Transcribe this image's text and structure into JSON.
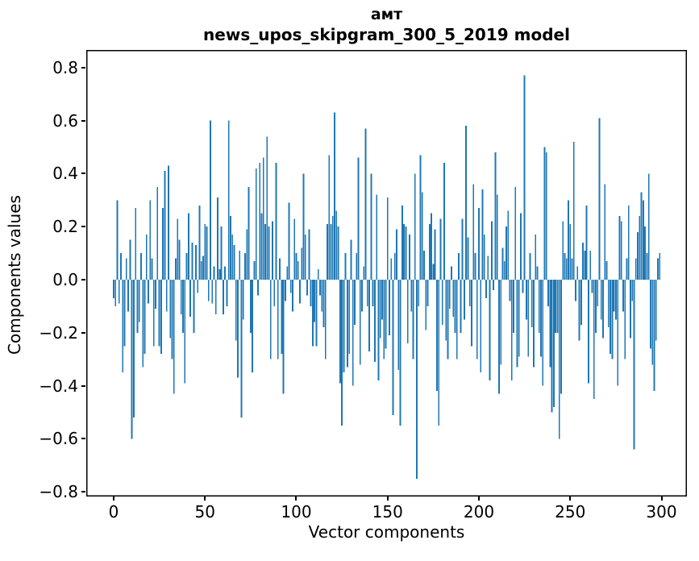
{
  "title": {
    "line1": "амт",
    "line2": "news_upos_skipgram_300_5_2019 model"
  },
  "chart_data": {
    "type": "bar",
    "title": "амт",
    "subtitle": "news_upos_skipgram_300_5_2019 model",
    "xlabel": "Vector components",
    "ylabel": "Components values",
    "bar_color": "#1f77b4",
    "spine_color": "#000000",
    "grid": false,
    "legend": false,
    "x_ticks": [
      0,
      50,
      100,
      150,
      200,
      250,
      300
    ],
    "y_ticks": [
      0.8,
      0.6,
      0.4,
      0.2,
      0.0,
      -0.2,
      -0.4,
      -0.6,
      -0.8
    ],
    "xlim": [
      -15.0,
      313.9
    ],
    "ylim": [
      -0.8176,
      0.8662
    ],
    "n_components": 300,
    "values": [
      -0.07,
      -0.1,
      0.3,
      -0.09,
      0.1,
      -0.35,
      -0.25,
      0.08,
      -0.12,
      0.15,
      -0.6,
      -0.52,
      0.27,
      -0.2,
      -0.16,
      0.1,
      -0.33,
      -0.28,
      0.17,
      -0.09,
      0.3,
      0.08,
      -0.25,
      -0.11,
      0.35,
      -0.25,
      -0.28,
      0.27,
      0.41,
      -0.12,
      0.43,
      -0.22,
      -0.3,
      -0.43,
      0.08,
      0.23,
      0.15,
      -0.13,
      -0.2,
      -0.39,
      0.1,
      0.25,
      -0.14,
      0.14,
      -0.2,
      0.13,
      -0.05,
      0.28,
      0.07,
      0.09,
      0.21,
      0.2,
      -0.08,
      0.6,
      -0.09,
      0.05,
      -0.13,
      0.31,
      0.04,
      0.2,
      -0.13,
      0.05,
      -0.1,
      0.6,
      0.24,
      0.17,
      0.13,
      -0.23,
      -0.37,
      0.11,
      -0.52,
      -0.15,
      0.1,
      0.19,
      0.35,
      -0.2,
      -0.35,
      0.07,
      0.42,
      -0.06,
      0.44,
      0.25,
      0.46,
      0.21,
      0.54,
      0.2,
      -0.3,
      0.22,
      -0.1,
      0.44,
      -0.3,
      0.08,
      -0.28,
      -0.43,
      -0.08,
      0.05,
      0.29,
      -0.05,
      -0.12,
      0.23,
      0.1,
      0.07,
      -0.09,
      0.12,
      0.4,
      0.17,
      -0.06,
      0.19,
      -0.1,
      -0.25,
      -0.16,
      -0.25,
      0.04,
      -0.06,
      -0.12,
      -0.18,
      -0.3,
      0.21,
      0.47,
      0.21,
      0.24,
      0.63,
      0.26,
      0.2,
      -0.39,
      -0.55,
      -0.35,
      0.1,
      -0.33,
      -0.28,
      0.15,
      -0.4,
      -0.17,
      0.1,
      0.46,
      -0.32,
      -0.12,
      0.05,
      0.57,
      -0.1,
      -0.27,
      0.4,
      -0.1,
      -0.31,
      0.32,
      -0.38,
      -0.22,
      -0.15,
      -0.3,
      -0.26,
      0.31,
      -0.21,
      0.08,
      -0.51,
      0.1,
      0.19,
      -0.34,
      -0.55,
      0.28,
      0.21,
      0.2,
      -0.24,
      0.17,
      -0.12,
      -0.3,
      0.4,
      -0.75,
      -0.1,
      0.47,
      0.33,
      0.11,
      -0.19,
      -0.1,
      0.21,
      0.25,
      0.06,
      0.19,
      -0.42,
      -0.55,
      0.23,
      -0.17,
      0.44,
      -0.23,
      -0.3,
      -0.11,
      0.05,
      -0.14,
      -0.2,
      -0.3,
      0.1,
      -0.2,
      0.23,
      -0.15,
      0.58,
      0.16,
      -0.1,
      -0.25,
      0.36,
      0.1,
      -0.3,
      0.27,
      -0.35,
      0.34,
      0.17,
      -0.07,
      0.09,
      -0.38,
      0.22,
      -0.04,
      0.48,
      0.32,
      -0.43,
      -0.32,
      0.12,
      0.07,
      0.2,
      0.26,
      -0.08,
      -0.38,
      -0.2,
      0.35,
      -0.33,
      -0.29,
      0.25,
      -0.05,
      0.77,
      -0.15,
      -0.29,
      0.1,
      -0.18,
      -0.33,
      0.17,
      0.05,
      -0.2,
      -0.29,
      -0.4,
      0.5,
      0.48,
      -0.1,
      -0.33,
      -0.5,
      -0.48,
      -0.2,
      -0.2,
      -0.6,
      -0.43,
      0.22,
      0.1,
      0.08,
      0.3,
      0.21,
      0.08,
      0.52,
      -0.08,
      0.05,
      -0.23,
      -0.17,
      0.14,
      0.11,
      0.28,
      -0.39,
      0.11,
      -0.05,
      -0.45,
      -0.2,
      -0.1,
      0.61,
      -0.15,
      -0.22,
      0.36,
      0.07,
      -0.18,
      -0.28,
      -0.3,
      -0.12,
      -0.15,
      -0.4,
      0.24,
      0.22,
      -0.12,
      -0.3,
      0.08,
      0.28,
      -0.22,
      -0.08,
      -0.64,
      0.08,
      0.18,
      0.24,
      0.33,
      0.3,
      0.2,
      0.1,
      0.4,
      -0.26,
      -0.32,
      -0.42,
      -0.23,
      0.08,
      0.1
    ]
  }
}
